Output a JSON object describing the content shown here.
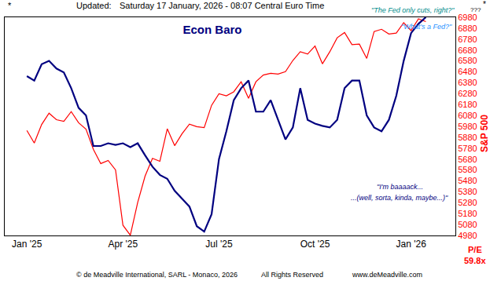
{
  "chart_data": {
    "type": "line",
    "title": "Econ Baro",
    "ylabel": "S&P 500",
    "categories": [
      "Jan '25",
      null,
      null,
      null,
      null,
      null,
      null,
      null,
      null,
      null,
      null,
      null,
      null,
      "Apr '25",
      null,
      null,
      null,
      null,
      null,
      null,
      null,
      null,
      null,
      null,
      null,
      null,
      "Jul '25",
      null,
      null,
      null,
      null,
      null,
      null,
      null,
      null,
      null,
      null,
      null,
      null,
      "Oct '25",
      null,
      null,
      null,
      null,
      null,
      null,
      null,
      null,
      null,
      null,
      null,
      null,
      "Jan '26",
      null,
      null
    ],
    "series": [
      {
        "name": "S&P 500",
        "color": "#ff0000",
        "values": [
          5942,
          5827,
          5997,
          6101,
          6041,
          6026,
          6115,
          6013,
          5955,
          5770,
          5639,
          5668,
          5581,
          5074,
          4982,
          5283,
          5525,
          5687,
          5660,
          5958,
          5803,
          5912,
          6000,
          5977,
          5968,
          6173,
          6279,
          6260,
          6297,
          6389,
          6238,
          6389,
          6450,
          6467,
          6460,
          6482,
          6584,
          6664,
          6643,
          6716,
          6553,
          6664,
          6792,
          6840,
          6729,
          6734,
          6603,
          6849,
          6870,
          6827,
          6835,
          6930,
          6858,
          6966,
          6940
        ]
      },
      {
        "name": "Econ Baro",
        "color": "#000080",
        "values": [
          6440,
          6400,
          6550,
          6580,
          6510,
          6475,
          6330,
          6150,
          6080,
          5800,
          5800,
          5825,
          5810,
          5825,
          5790,
          5825,
          5715,
          5610,
          5535,
          5500,
          5390,
          5320,
          5245,
          5065,
          5015,
          5175,
          5680,
          5935,
          6220,
          6330,
          6400,
          6115,
          6115,
          6220,
          6040,
          5860,
          5970,
          6330,
          6040,
          6005,
          5985,
          5970,
          6040,
          6330,
          6400,
          6400,
          6080,
          5970,
          5935,
          6040,
          6260,
          6580,
          6835,
          6920,
          6980
        ]
      }
    ],
    "ylim": [
      4980,
      6980
    ],
    "yticks": [
      4980,
      5080,
      5180,
      5280,
      5380,
      5480,
      5580,
      5680,
      5780,
      5880,
      5980,
      6080,
      6180,
      6280,
      6380,
      6480,
      6580,
      6680,
      6780,
      6880,
      6980
    ],
    "grid": false,
    "annotations": [
      "*",
      "Updated:",
      "Saturday 17 January, 2026 - 08:07 Central Euro Time",
      "*",
      "\"The Fed only cuts, right?\"",
      "\"What's a Fed?\"",
      "???",
      "\"I'm baaaack...",
      "...(well, sorta, kinda, maybe...)\"",
      "P/E",
      "59.8x",
      "© de Meadville International, SARL - Monaco, 2026",
      "All Rights Reserved",
      "www.deMeadville.com"
    ]
  }
}
